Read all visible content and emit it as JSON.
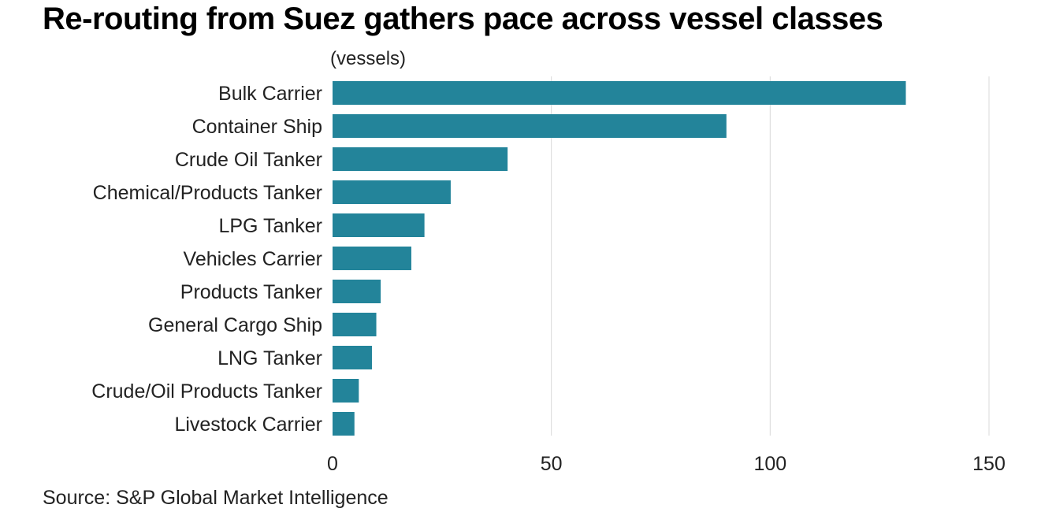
{
  "title": "Re-routing from Suez gathers pace across vessel classes",
  "unit_label": "(vessels)",
  "source": "Source: S&P Global Market Intelligence",
  "colors": {
    "bar": "#23849a",
    "grid": "#d9d9d9",
    "text": "#222222"
  },
  "chart_data": {
    "type": "bar",
    "orientation": "horizontal",
    "title": "Re-routing from Suez gathers pace across vessel classes",
    "xlabel": "",
    "ylabel": "(vessels)",
    "xlim": [
      0,
      150
    ],
    "xticks": [
      0,
      50,
      100,
      150
    ],
    "grid": "vertical",
    "categories": [
      "Bulk Carrier",
      "Container Ship",
      "Crude Oil Tanker",
      "Chemical/Products Tanker",
      "LPG Tanker",
      "Vehicles Carrier",
      "Products Tanker",
      "General Cargo Ship",
      "LNG Tanker",
      "Crude/Oil Products Tanker",
      "Livestock Carrier"
    ],
    "values": [
      131,
      90,
      40,
      27,
      21,
      18,
      11,
      10,
      9,
      6,
      5
    ]
  }
}
